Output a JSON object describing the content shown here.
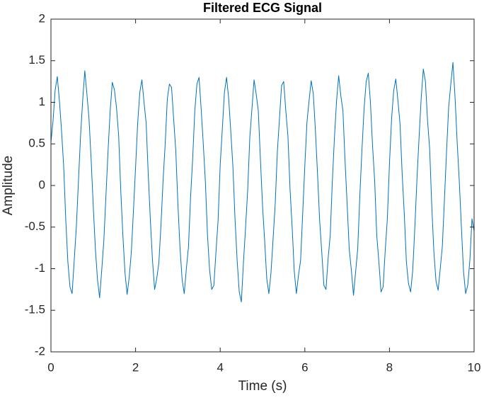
{
  "chart_data": {
    "type": "line",
    "title": "Filtered ECG Signal",
    "xlabel": "Time (s)",
    "ylabel": "Amplitude",
    "x": [
      0,
      0.05,
      0.1,
      0.15,
      0.2,
      0.25,
      0.3,
      0.35,
      0.4,
      0.45,
      0.5,
      0.55,
      0.6,
      0.65,
      0.7,
      0.75,
      0.8,
      0.85,
      0.9,
      0.95,
      1,
      1.05,
      1.1,
      1.15,
      1.2,
      1.25,
      1.3,
      1.35,
      1.4,
      1.45,
      1.5,
      1.55,
      1.6,
      1.65,
      1.7,
      1.75,
      1.8,
      1.85,
      1.9,
      1.95,
      2,
      2.05,
      2.1,
      2.15,
      2.2,
      2.25,
      2.3,
      2.35,
      2.4,
      2.45,
      2.5,
      2.55,
      2.6,
      2.65,
      2.7,
      2.75,
      2.8,
      2.85,
      2.9,
      2.95,
      3,
      3.05,
      3.1,
      3.15,
      3.2,
      3.25,
      3.3,
      3.35,
      3.4,
      3.45,
      3.5,
      3.55,
      3.6,
      3.65,
      3.7,
      3.75,
      3.8,
      3.85,
      3.9,
      3.95,
      4,
      4.05,
      4.1,
      4.15,
      4.2,
      4.25,
      4.3,
      4.35,
      4.4,
      4.45,
      4.5,
      4.55,
      4.6,
      4.65,
      4.7,
      4.75,
      4.8,
      4.85,
      4.9,
      4.95,
      5,
      5.05,
      5.1,
      5.15,
      5.2,
      5.25,
      5.3,
      5.35,
      5.4,
      5.45,
      5.5,
      5.55,
      5.6,
      5.65,
      5.7,
      5.75,
      5.8,
      5.85,
      5.9,
      5.95,
      6,
      6.05,
      6.1,
      6.15,
      6.2,
      6.25,
      6.3,
      6.35,
      6.4,
      6.45,
      6.5,
      6.55,
      6.6,
      6.65,
      6.7,
      6.75,
      6.8,
      6.85,
      6.9,
      6.95,
      7,
      7.05,
      7.1,
      7.15,
      7.2,
      7.25,
      7.3,
      7.35,
      7.4,
      7.45,
      7.5,
      7.55,
      7.6,
      7.65,
      7.7,
      7.75,
      7.8,
      7.85,
      7.9,
      7.95,
      8,
      8.05,
      8.1,
      8.15,
      8.2,
      8.25,
      8.3,
      8.35,
      8.4,
      8.45,
      8.5,
      8.55,
      8.6,
      8.65,
      8.7,
      8.75,
      8.8,
      8.85,
      8.9,
      8.95,
      9,
      9.05,
      9.1,
      9.15,
      9.2,
      9.25,
      9.3,
      9.35,
      9.4,
      9.45,
      9.5,
      9.55,
      9.6,
      9.65,
      9.7,
      9.75,
      9.8,
      9.85,
      9.9,
      9.95,
      10
    ],
    "series": [
      {
        "color": "#0072bd",
        "values": [
          0.52,
          0.78,
          1.15,
          1.31,
          1.02,
          0.66,
          0.24,
          -0.41,
          -0.92,
          -1.22,
          -1.3,
          -0.9,
          -0.5,
          0.05,
          0.6,
          1.02,
          1.38,
          1.1,
          0.8,
          0.31,
          -0.25,
          -0.76,
          -1.13,
          -1.35,
          -1.02,
          -0.66,
          -0.12,
          0.42,
          0.9,
          1.24,
          1.15,
          0.93,
          0.6,
          -0.06,
          -0.6,
          -1.05,
          -1.31,
          -1.1,
          -0.8,
          -0.3,
          0.22,
          0.75,
          1.12,
          1.27,
          1.0,
          0.75,
          0.13,
          -0.42,
          -0.9,
          -1.25,
          -1.12,
          -0.93,
          -0.48,
          0.06,
          0.5,
          1.04,
          1.22,
          1.18,
          0.8,
          0.42,
          -0.22,
          -0.75,
          -1.13,
          -1.3,
          -1.0,
          -0.74,
          -0.14,
          0.33,
          0.9,
          1.22,
          1.3,
          0.92,
          0.5,
          0.04,
          -0.6,
          -1.02,
          -1.25,
          -1.2,
          -0.8,
          -0.42,
          0.25,
          0.68,
          1.12,
          1.3,
          1.05,
          0.65,
          0.23,
          -0.4,
          -0.9,
          -1.28,
          -1.4,
          -0.92,
          -0.5,
          -0.05,
          0.58,
          0.92,
          1.27,
          1.1,
          0.9,
          0.32,
          -0.24,
          -0.66,
          -1.12,
          -1.3,
          -1.05,
          -0.64,
          -0.22,
          0.4,
          0.8,
          1.2,
          1.25,
          0.9,
          0.6,
          -0.04,
          -0.5,
          -1.03,
          -1.3,
          -1.08,
          -0.9,
          -0.33,
          0.24,
          0.76,
          1.02,
          1.26,
          1.1,
          0.66,
          0.14,
          -0.42,
          -0.8,
          -1.2,
          -1.25,
          -0.88,
          -0.6,
          0.05,
          0.58,
          1.02,
          1.32,
          1.08,
          0.9,
          0.3,
          -0.23,
          -0.77,
          -1.02,
          -1.32,
          -1.04,
          -0.76,
          -0.12,
          0.43,
          0.92,
          1.25,
          1.35,
          1.0,
          0.48,
          0.06,
          -0.6,
          -0.92,
          -1.28,
          -1.22,
          -0.78,
          -0.4,
          0.26,
          0.8,
          1.14,
          1.28,
          1.02,
          0.74,
          0.14,
          -0.34,
          -0.92,
          -1.18,
          -1.28,
          -1.02,
          -0.5,
          0.08,
          0.58,
          1.05,
          1.4,
          1.25,
          0.78,
          0.44,
          -0.25,
          -0.8,
          -1.15,
          -1.26,
          -1.0,
          -0.73,
          -0.16,
          0.42,
          0.95,
          1.22,
          1.48,
          1.06,
          0.52,
          0.05,
          -0.5,
          -1.03,
          -1.3,
          -1.2,
          -0.9,
          -0.4,
          -0.55
        ]
      }
    ],
    "xlim": [
      0,
      10
    ],
    "xticks": [
      0,
      2,
      4,
      6,
      8,
      10
    ],
    "ylim": [
      -2,
      2
    ],
    "yticks": [
      -2,
      -1.5,
      -1,
      -0.5,
      0,
      0.5,
      1,
      1.5,
      2
    ],
    "grid": false
  }
}
